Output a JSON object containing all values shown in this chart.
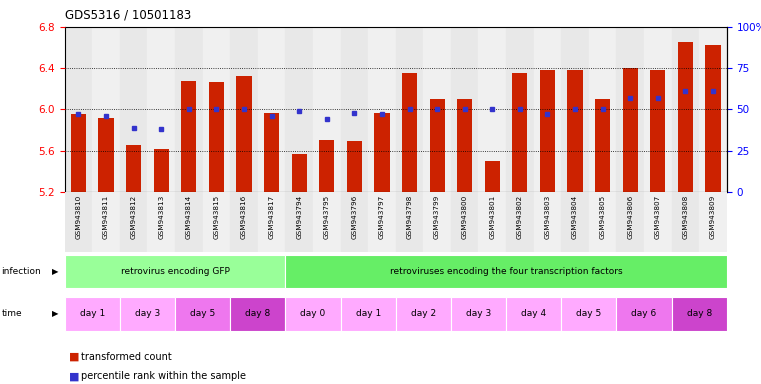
{
  "title": "GDS5316 / 10501183",
  "ylim_left": [
    5.2,
    6.8
  ],
  "ylim_right": [
    0,
    100
  ],
  "yticks_left": [
    5.2,
    5.6,
    6.0,
    6.4,
    6.8
  ],
  "yticks_right": [
    0,
    25,
    50,
    75,
    100
  ],
  "ytick_labels_right": [
    "0",
    "25",
    "50",
    "75",
    "100%"
  ],
  "samples": [
    "GSM943810",
    "GSM943811",
    "GSM943812",
    "GSM943813",
    "GSM943814",
    "GSM943815",
    "GSM943816",
    "GSM943817",
    "GSM943794",
    "GSM943795",
    "GSM943796",
    "GSM943797",
    "GSM943798",
    "GSM943799",
    "GSM943800",
    "GSM943801",
    "GSM943802",
    "GSM943803",
    "GSM943804",
    "GSM943805",
    "GSM943806",
    "GSM943807",
    "GSM943808",
    "GSM943809"
  ],
  "bar_values": [
    5.96,
    5.92,
    5.66,
    5.62,
    6.28,
    6.27,
    6.32,
    5.97,
    5.57,
    5.7,
    5.69,
    5.97,
    6.35,
    6.1,
    6.1,
    5.5,
    6.35,
    6.38,
    6.38,
    6.1,
    6.4,
    6.38,
    6.65,
    6.62
  ],
  "percentile_values": [
    47,
    46,
    39,
    38,
    50,
    50,
    50,
    46,
    49,
    44,
    48,
    47,
    50,
    50,
    50,
    50,
    50,
    47,
    50,
    50,
    57,
    57,
    61,
    61
  ],
  "bar_color": "#cc2200",
  "percentile_color": "#3333cc",
  "bar_bottom": 5.2,
  "infection_groups": [
    {
      "label": "retrovirus encoding GFP",
      "start": 0,
      "end": 7,
      "color": "#99ff99"
    },
    {
      "label": "retroviruses encoding the four transcription factors",
      "start": 8,
      "end": 23,
      "color": "#66ee66"
    }
  ],
  "time_groups": [
    {
      "label": "day 1",
      "start": 0,
      "end": 1,
      "color": "#ffaaff"
    },
    {
      "label": "day 3",
      "start": 2,
      "end": 3,
      "color": "#ffaaff"
    },
    {
      "label": "day 5",
      "start": 4,
      "end": 5,
      "color": "#ee77ee"
    },
    {
      "label": "day 8",
      "start": 6,
      "end": 7,
      "color": "#cc44cc"
    },
    {
      "label": "day 0",
      "start": 8,
      "end": 9,
      "color": "#ffaaff"
    },
    {
      "label": "day 1",
      "start": 10,
      "end": 11,
      "color": "#ffaaff"
    },
    {
      "label": "day 2",
      "start": 12,
      "end": 13,
      "color": "#ffaaff"
    },
    {
      "label": "day 3",
      "start": 14,
      "end": 15,
      "color": "#ffaaff"
    },
    {
      "label": "day 4",
      "start": 16,
      "end": 17,
      "color": "#ffaaff"
    },
    {
      "label": "day 5",
      "start": 18,
      "end": 19,
      "color": "#ffaaff"
    },
    {
      "label": "day 6",
      "start": 20,
      "end": 21,
      "color": "#ee77ee"
    },
    {
      "label": "day 8",
      "start": 22,
      "end": 23,
      "color": "#cc44cc"
    }
  ],
  "bg_colors": [
    "#e8e8e8",
    "#f0f0f0"
  ],
  "fig_width": 7.61,
  "fig_height": 3.84,
  "dpi": 100
}
